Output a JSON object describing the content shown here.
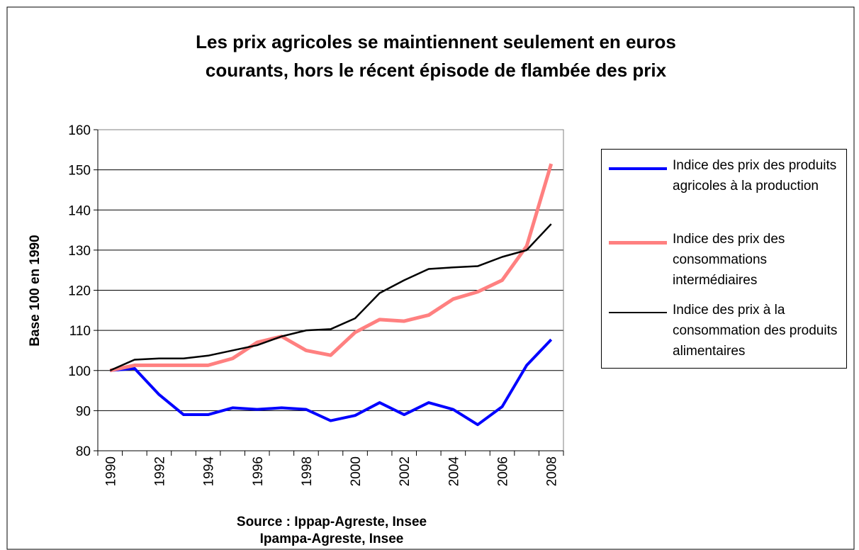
{
  "chart_data": {
    "type": "line",
    "title": [
      "Les prix agricoles se maintiennent seulement en euros",
      "courants, hors le récent épisode de flambée des prix"
    ],
    "ylabel": "Base 100 en 1990",
    "annotations": [
      "Source : Ippap-Agreste, Insee",
      "Ipampa-Agreste, Insee"
    ],
    "categories": [
      "1990",
      null,
      "1992",
      null,
      "1994",
      null,
      "1996",
      null,
      "1998",
      null,
      "2000",
      null,
      "2002",
      null,
      "2004",
      null,
      "2006",
      null,
      "2008"
    ],
    "series": [
      {
        "name": "Indice des prix des produits agricoles à la production",
        "color": "#0000ff",
        "values": [
          100,
          100.5,
          94,
          89,
          89,
          90.7,
          90.3,
          90.7,
          90.3,
          87.5,
          88.8,
          92,
          89,
          92,
          90.3,
          86.5,
          91,
          101.3,
          107.7
        ]
      },
      {
        "name": "Indice des prix des consommations intermédiaires",
        "color": "#ff8080",
        "values": [
          100,
          101.3,
          101.3,
          101.3,
          101.3,
          103,
          107,
          108.5,
          105,
          103.8,
          109.5,
          112.7,
          112.3,
          113.8,
          117.8,
          119.6,
          122.5,
          131,
          151.5
        ]
      },
      {
        "name": "Indice des prix à la consommation des produits alimentaires",
        "color": "#000000",
        "values": [
          100,
          102.7,
          103,
          103,
          103.7,
          105,
          106.3,
          108.5,
          110,
          110.3,
          113,
          119.3,
          122.5,
          125.3,
          125.7,
          126,
          128.3,
          130,
          136.5
        ]
      }
    ],
    "ylim": [
      80,
      160
    ],
    "yticks": [
      80,
      90,
      100,
      110,
      120,
      130,
      140,
      150,
      160
    ],
    "grid": true,
    "legend": "right"
  }
}
